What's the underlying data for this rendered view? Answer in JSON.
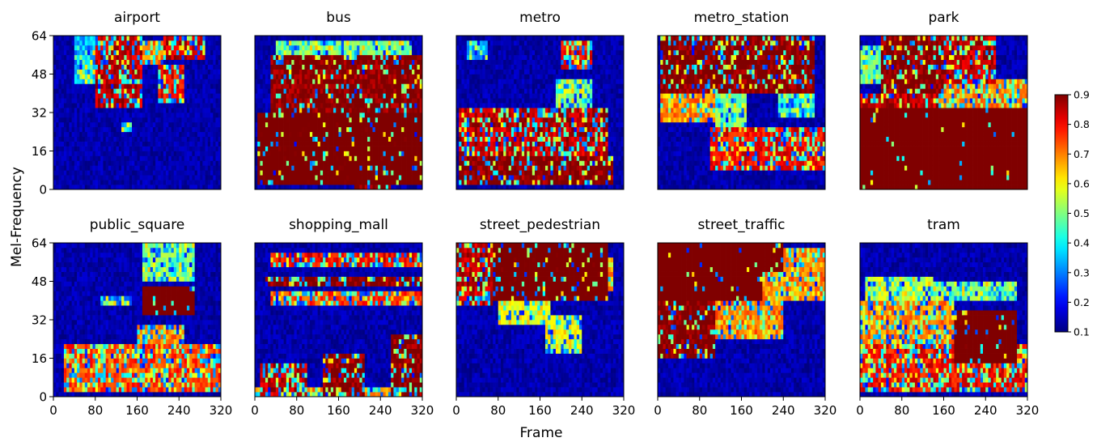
{
  "chart_data": {
    "type": "heatmap",
    "xlabel": "Frame",
    "ylabel": "Mel-Frequency",
    "x_ticks": [
      "0",
      "80",
      "160",
      "240",
      "320"
    ],
    "y_ticks": [
      "0",
      "16",
      "32",
      "48",
      "64"
    ],
    "xlim": [
      0,
      320
    ],
    "ylim": [
      0,
      64
    ],
    "colorscale": "jet",
    "colorbar": {
      "min": 0.1,
      "max": 0.9,
      "ticks": [
        "0.1",
        "0.2",
        "0.3",
        "0.4",
        "0.5",
        "0.6",
        "0.7",
        "0.8",
        "0.9"
      ]
    },
    "panels": [
      {
        "title": "airport",
        "regions": [
          {
            "x": [
              80,
              170
            ],
            "y": [
              34,
              64
            ],
            "v": 0.85,
            "d": 0.65
          },
          {
            "x": [
              170,
              210
            ],
            "y": [
              52,
              62
            ],
            "v": 0.7,
            "d": 0.4
          },
          {
            "x": [
              200,
              250
            ],
            "y": [
              36,
              52
            ],
            "v": 0.8,
            "d": 0.6
          },
          {
            "x": [
              210,
              290
            ],
            "y": [
              55,
              64
            ],
            "v": 0.85,
            "d": 0.55
          },
          {
            "x": [
              40,
              80
            ],
            "y": [
              44,
              64
            ],
            "v": 0.35,
            "d": 0.4
          },
          {
            "x": [
              130,
              150
            ],
            "y": [
              25,
              28
            ],
            "v": 0.3,
            "d": 0.5
          }
        ]
      },
      {
        "title": "bus",
        "regions": [
          {
            "x": [
              5,
              320
            ],
            "y": [
              3,
              32
            ],
            "v": 0.95,
            "d": 0.9
          },
          {
            "x": [
              30,
              320
            ],
            "y": [
              32,
              56
            ],
            "v": 0.9,
            "d": 0.82
          },
          {
            "x": [
              40,
              300
            ],
            "y": [
              56,
              62
            ],
            "v": 0.5,
            "d": 0.5
          },
          {
            "x": [
              190,
              260
            ],
            "y": [
              0,
              4
            ],
            "v": 0.9,
            "d": 0.85
          }
        ]
      },
      {
        "title": "metro",
        "regions": [
          {
            "x": [
              5,
              300
            ],
            "y": [
              2,
              14
            ],
            "v": 0.9,
            "d": 0.75
          },
          {
            "x": [
              5,
              290
            ],
            "y": [
              14,
              33
            ],
            "v": 0.85,
            "d": 0.65
          },
          {
            "x": [
              190,
              260
            ],
            "y": [
              33,
              45
            ],
            "v": 0.5,
            "d": 0.4
          },
          {
            "x": [
              200,
              260
            ],
            "y": [
              50,
              62
            ],
            "v": 0.8,
            "d": 0.55
          },
          {
            "x": [
              20,
              60
            ],
            "y": [
              55,
              62
            ],
            "v": 0.3,
            "d": 0.4
          }
        ]
      },
      {
        "title": "metro_station",
        "regions": [
          {
            "x": [
              5,
              300
            ],
            "y": [
              40,
              64
            ],
            "v": 0.9,
            "d": 0.75
          },
          {
            "x": [
              5,
              110
            ],
            "y": [
              28,
              44
            ],
            "v": 0.7,
            "d": 0.6
          },
          {
            "x": [
              100,
              320
            ],
            "y": [
              8,
              26
            ],
            "v": 0.8,
            "d": 0.6
          },
          {
            "x": [
              110,
              170
            ],
            "y": [
              26,
              40
            ],
            "v": 0.5,
            "d": 0.5
          },
          {
            "x": [
              230,
              300
            ],
            "y": [
              30,
              40
            ],
            "v": 0.4,
            "d": 0.4
          }
        ]
      },
      {
        "title": "park",
        "regions": [
          {
            "x": [
              0,
              320
            ],
            "y": [
              0,
              34
            ],
            "v": 0.97,
            "d": 0.97
          },
          {
            "x": [
              0,
              150
            ],
            "y": [
              34,
              40
            ],
            "v": 0.85,
            "d": 0.8
          },
          {
            "x": [
              40,
              160
            ],
            "y": [
              40,
              64
            ],
            "v": 0.9,
            "d": 0.8
          },
          {
            "x": [
              160,
              260
            ],
            "y": [
              45,
              64
            ],
            "v": 0.85,
            "d": 0.6
          },
          {
            "x": [
              150,
              320
            ],
            "y": [
              34,
              45
            ],
            "v": 0.7,
            "d": 0.5
          },
          {
            "x": [
              0,
              40
            ],
            "y": [
              44,
              60
            ],
            "v": 0.5,
            "d": 0.5
          }
        ]
      },
      {
        "title": "public_square",
        "regions": [
          {
            "x": [
              20,
              320
            ],
            "y": [
              2,
              22
            ],
            "v": 0.75,
            "d": 0.55
          },
          {
            "x": [
              160,
              250
            ],
            "y": [
              12,
              30
            ],
            "v": 0.7,
            "d": 0.55
          },
          {
            "x": [
              170,
              270
            ],
            "y": [
              34,
              46
            ],
            "v": 0.95,
            "d": 0.85
          },
          {
            "x": [
              170,
              270
            ],
            "y": [
              48,
              64
            ],
            "v": 0.5,
            "d": 0.5
          },
          {
            "x": [
              90,
              150
            ],
            "y": [
              38,
              42
            ],
            "v": 0.3,
            "d": 0.4
          }
        ]
      },
      {
        "title": "shopping_mall",
        "regions": [
          {
            "x": [
              30,
              320
            ],
            "y": [
              55,
              60
            ],
            "v": 0.8,
            "d": 0.55
          },
          {
            "x": [
              20,
              320
            ],
            "y": [
              47,
              50
            ],
            "v": 0.9,
            "d": 0.7
          },
          {
            "x": [
              30,
              320
            ],
            "y": [
              39,
              43
            ],
            "v": 0.75,
            "d": 0.55
          },
          {
            "x": [
              10,
              100
            ],
            "y": [
              0,
              14
            ],
            "v": 0.85,
            "d": 0.6
          },
          {
            "x": [
              130,
              210
            ],
            "y": [
              0,
              17
            ],
            "v": 0.9,
            "d": 0.7
          },
          {
            "x": [
              260,
              320
            ],
            "y": [
              0,
              25
            ],
            "v": 0.9,
            "d": 0.7
          },
          {
            "x": [
              0,
              320
            ],
            "y": [
              0,
              3
            ],
            "v": 0.7,
            "d": 0.5
          }
        ]
      },
      {
        "title": "street_pedestrian",
        "regions": [
          {
            "x": [
              70,
              290
            ],
            "y": [
              40,
              64
            ],
            "v": 0.95,
            "d": 0.85
          },
          {
            "x": [
              0,
              70
            ],
            "y": [
              38,
              64
            ],
            "v": 0.85,
            "d": 0.65
          },
          {
            "x": [
              80,
              180
            ],
            "y": [
              30,
              40
            ],
            "v": 0.6,
            "d": 0.5
          },
          {
            "x": [
              170,
              240
            ],
            "y": [
              18,
              34
            ],
            "v": 0.6,
            "d": 0.5
          },
          {
            "x": [
              230,
              300
            ],
            "y": [
              45,
              58
            ],
            "v": 0.7,
            "d": 0.6
          }
        ]
      },
      {
        "title": "street_traffic",
        "regions": [
          {
            "x": [
              0,
              200
            ],
            "y": [
              40,
              64
            ],
            "v": 0.97,
            "d": 0.95
          },
          {
            "x": [
              0,
              110
            ],
            "y": [
              16,
              40
            ],
            "v": 0.9,
            "d": 0.78
          },
          {
            "x": [
              110,
              240
            ],
            "y": [
              24,
              40
            ],
            "v": 0.7,
            "d": 0.6
          },
          {
            "x": [
              200,
              320
            ],
            "y": [
              40,
              62
            ],
            "v": 0.7,
            "d": 0.6
          },
          {
            "x": [
              100,
              240
            ],
            "y": [
              52,
              64
            ],
            "v": 0.95,
            "d": 0.9
          }
        ]
      },
      {
        "title": "tram",
        "regions": [
          {
            "x": [
              0,
              320
            ],
            "y": [
              2,
              22
            ],
            "v": 0.8,
            "d": 0.55
          },
          {
            "x": [
              180,
              300
            ],
            "y": [
              15,
              36
            ],
            "v": 0.95,
            "d": 0.9
          },
          {
            "x": [
              0,
              180
            ],
            "y": [
              22,
              40
            ],
            "v": 0.7,
            "d": 0.55
          },
          {
            "x": [
              10,
              140
            ],
            "y": [
              38,
              50
            ],
            "v": 0.55,
            "d": 0.5
          },
          {
            "x": [
              140,
              300
            ],
            "y": [
              40,
              48
            ],
            "v": 0.5,
            "d": 0.45
          }
        ]
      }
    ]
  }
}
